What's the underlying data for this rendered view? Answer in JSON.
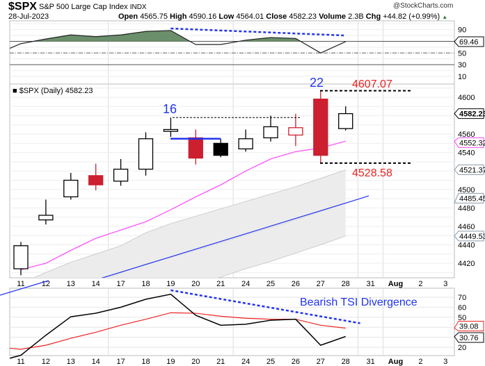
{
  "header": {
    "symbol": "$SPX",
    "name": "S&P 500 Large Cap Index",
    "exchange": "INDX",
    "copyright": "@StockCharts.com",
    "date": "28-Jul-2023",
    "open_label": "Open",
    "open": "4565.75",
    "high_label": "High",
    "high": "4590.16",
    "low_label": "Low",
    "low": "4564.01",
    "close_label": "Close",
    "close": "4582.23",
    "volume_label": "Volume",
    "volume": "2.3B",
    "chg_label": "Chg",
    "chg": "+44.82 (+0.99%)",
    "chg_icon": "up-triangle-icon"
  },
  "dates": [
    "11",
    "12",
    "13",
    "14",
    "17",
    "18",
    "19",
    "20",
    "21",
    "24",
    "25",
    "26",
    "27",
    "28",
    "31",
    "Aug",
    "2",
    "3"
  ],
  "rsi": {
    "values": [
      66,
      74,
      81,
      78,
      81,
      87,
      88.5,
      64.5,
      64.5,
      72,
      76.5,
      75,
      50,
      69.46
    ],
    "start": 58,
    "last_label": "69.46",
    "ticks": [
      "90",
      "50",
      "30",
      "10"
    ],
    "fill_color": "#6b8e6b"
  },
  "price": {
    "legend": "$SPX (Daily) 4582.23",
    "candles": [
      {
        "o": 4414,
        "h": 4443,
        "l": 4407,
        "c": 4439,
        "style": "hollow-black"
      },
      {
        "o": 4467,
        "h": 4489,
        "l": 4462,
        "c": 4472,
        "style": "hollow-black"
      },
      {
        "o": 4492,
        "h": 4518,
        "l": 4489,
        "c": 4510,
        "style": "hollow-black"
      },
      {
        "o": 4515,
        "h": 4528,
        "l": 4499,
        "c": 4505,
        "style": "filled-red"
      },
      {
        "o": 4509,
        "h": 4533,
        "l": 4504,
        "c": 4522,
        "style": "hollow-black"
      },
      {
        "o": 4522,
        "h": 4562,
        "l": 4515,
        "c": 4555,
        "style": "hollow-black"
      },
      {
        "o": 4563,
        "h": 4578,
        "l": 4557,
        "c": 4565,
        "style": "hollow-black"
      },
      {
        "o": 4556,
        "h": 4565,
        "l": 4527,
        "c": 4534,
        "style": "filled-red"
      },
      {
        "o": 4550,
        "h": 4555,
        "l": 4535,
        "c": 4537,
        "style": "filled-black"
      },
      {
        "o": 4544,
        "h": 4565,
        "l": 4541,
        "c": 4555,
        "style": "hollow-black"
      },
      {
        "o": 4556,
        "h": 4580,
        "l": 4552,
        "c": 4568,
        "style": "hollow-black"
      },
      {
        "o": 4559,
        "h": 4582,
        "l": 4547,
        "c": 4567,
        "style": "hollow-red"
      },
      {
        "o": 4598,
        "h": 4607.07,
        "l": 4528.58,
        "c": 4537,
        "style": "filled-red"
      },
      {
        "o": 4566,
        "h": 4590.16,
        "l": 4564.01,
        "c": 4582.23,
        "style": "hollow-black"
      }
    ],
    "ma": [
      4413,
      4420,
      4434,
      4447,
      4456,
      4465,
      4478,
      4492,
      4505,
      4520,
      4533,
      4541,
      4545,
      4552.32
    ],
    "band_upper": [
      4398,
      4410,
      4421,
      4430,
      4439,
      4453,
      4463,
      4471,
      4479,
      4487,
      4495,
      4503,
      4512,
      4521.37
    ],
    "band_lower": [
      4340,
      4350,
      4360,
      4370,
      4380,
      4386,
      4390,
      4397,
      4405,
      4414,
      4422,
      4431,
      4440,
      4449.53
    ],
    "trendline": [
      4370,
      4493
    ],
    "ticks": [
      "4600",
      "4560",
      "4540",
      "4500",
      "4480",
      "4460",
      "4440",
      "4420"
    ],
    "labels": {
      "close": "4582.23",
      "ma": "4552.32",
      "upper": "4521.37",
      "trend": "4485.45",
      "lower": "4449.53"
    },
    "annotations": {
      "n16": "16",
      "n22": "22",
      "high": "4607.07",
      "low": "4528.58",
      "level16": 4578,
      "blue_level": 4555
    }
  },
  "tsi": {
    "tsi": [
      12,
      32,
      50.5,
      54,
      60,
      68,
      73,
      52,
      42,
      43,
      47,
      48,
      22,
      30.76
    ],
    "signal": [
      18,
      22,
      29,
      35,
      42,
      48,
      54.5,
      54,
      51,
      49,
      48,
      48,
      42,
      39.08
    ],
    "start_tsi": 9,
    "start_signal": 19,
    "ticks": [
      "70",
      "60",
      "50",
      "20"
    ],
    "tsi_label": "30.76",
    "signal_label": "39.08",
    "annotation": "Bearish TSI Divergence",
    "divergence": [
      77,
      44
    ]
  },
  "colors": {
    "red": "#cc1f2f",
    "blue": "#2233ee",
    "magenta": "#ff44ff",
    "band": "#ececec",
    "green": "#6b8e6b"
  }
}
